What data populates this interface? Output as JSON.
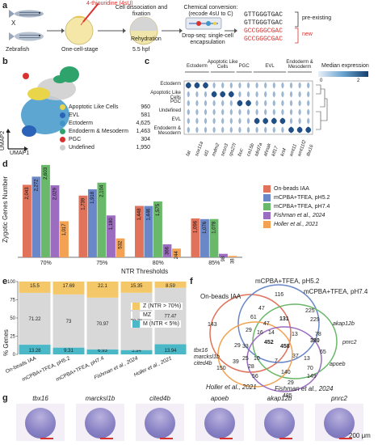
{
  "panel_labels": [
    "a",
    "b",
    "c",
    "d",
    "e",
    "f",
    "g"
  ],
  "panel_a": {
    "reagent": "4-thiouridine (4sU)",
    "zebrafish": "Zebrafish",
    "cross": "X",
    "stage1": "One-cell-stage",
    "stage2": "5.5 hpf",
    "step1": "Cell dissociation and fixation",
    "step2": "Rehydration",
    "step3": "Drop-seq: single-cell encapsulation",
    "step4": "Chemical conversion: (recode 4sU to C)",
    "seq_old_1": "GTTGGGTGAC",
    "seq_old_2": "GTTGGGTGAC",
    "seq_new_1": "GCCGGGCGAC",
    "seq_new_2": "GCCGGGCGAC",
    "pre_existing": "pre-existing",
    "new": "new"
  },
  "panel_b": {
    "xlabel": "UMAP1",
    "ylabel": "UMAP2",
    "legend": [
      {
        "name": "Apoptotic Like Cells",
        "count": "960",
        "color": "#e8d54a"
      },
      {
        "name": "EVL",
        "count": "581",
        "color": "#2a63b8"
      },
      {
        "name": "Ectoderm",
        "count": "4,625",
        "color": "#3f96c9"
      },
      {
        "name": "Endoderm & Mesoderm",
        "count": "1,463",
        "color": "#2ea36b"
      },
      {
        "name": "PGC",
        "count": "304",
        "color": "#d8322f"
      },
      {
        "name": "Undefined",
        "count": "1,950",
        "color": "#cfcfcf"
      }
    ]
  },
  "panel_c": {
    "groups": [
      "Ectoderm",
      "Apoptotic Like Cells",
      "PGC",
      "EVL",
      "Endoderm & Mesoderm"
    ],
    "rows": [
      "Ectoderm",
      "Apoptotic Like Cells",
      "PGC",
      "Undefined",
      "EVL",
      "Endoderm & Mesoderm"
    ],
    "genes": [
      "fat",
      "sox11a",
      "id1",
      "mdm2",
      "sesn3",
      "rps27l",
      "buc",
      "ca15b",
      "tdrd7a",
      "ahnak",
      "klf17",
      "krt4",
      "wnt11",
      "wnt11f2",
      "tbx16"
    ],
    "colorbar_label": "Median expression",
    "colorbar_ticks": [
      "0",
      "2"
    ]
  },
  "panel_d": {
    "chart_data": {
      "type": "bar",
      "title": "",
      "xlabel": "NTR Thresholds",
      "ylabel": "Zygotic Genes Number",
      "categories": [
        "70%",
        "75%",
        "80%",
        "85%"
      ],
      "ylim": [
        0,
        2600
      ],
      "series": [
        {
          "name": "On-beads IAA",
          "color": "#e0735a",
          "values": [
            2043,
            1739,
            1448,
            1096
          ]
        },
        {
          "name": "mCPBA+TFEA, pH5.2",
          "color": "#6a87c8",
          "values": [
            2272,
            1918,
            1446,
            1076
          ]
        },
        {
          "name": "mCPBA+TFEA, pH7.4",
          "color": "#6ab86a",
          "values": [
            2603,
            2104,
            1575,
            1078
          ]
        },
        {
          "name": "Fishman et al., 2024",
          "color": "#9b6cc0",
          "values": [
            2029,
            1180,
            366,
            98
          ]
        },
        {
          "name": "Holler et al., 2021",
          "color": "#f2a252",
          "values": [
            1017,
            532,
            244,
            38
          ]
        }
      ],
      "data_labels": {
        "values": [
          [
            "2,043",
            "2,272",
            "2,603",
            "2,029",
            "1,017"
          ],
          [
            "1,739",
            "1,918",
            "2,104",
            "1,180",
            "532"
          ],
          [
            "1,448",
            "1,446",
            "1,575",
            "366",
            "244"
          ],
          [
            "1,096",
            "1,076",
            "1,078",
            "98",
            "38"
          ]
        ]
      }
    }
  },
  "panel_e": {
    "chart_data": {
      "type": "bar",
      "title": "",
      "xlabel": "",
      "ylabel": "% Genes",
      "ylim": [
        0,
        100
      ],
      "categories": [
        "On-beads IAA",
        "mCPBA+TFEA, pH5.2",
        "mCPBA+TFEA, pH7.4",
        "Fishman et al., 2024",
        "Holler et al., 2021"
      ],
      "series": [
        {
          "name": "M (NTR < 5%)",
          "color": "#4bb8c8",
          "values": [
            13.28,
            9.31,
            6.93,
            5.94,
            13.94
          ]
        },
        {
          "name": "MZ",
          "color": "#d8d8d8",
          "values": [
            71.22,
            73,
            70.97,
            78.71,
            77.47
          ]
        },
        {
          "name": "Z (NTR > 70%)",
          "color": "#f4c869",
          "values": [
            15.5,
            17.69,
            22.1,
            15.35,
            8.59
          ]
        }
      ],
      "yticks": [
        "0",
        "25",
        "50",
        "75",
        "100"
      ],
      "data_labels": {
        "Z": [
          "15.5",
          "17.69",
          "22.1",
          "15.35",
          "8.59"
        ],
        "MZ": [
          "71.22",
          "73",
          "70.97",
          "78.71",
          "77.47"
        ],
        "M": [
          "13.28",
          "9.31",
          "6.93",
          "5.94",
          "13.94"
        ]
      }
    },
    "legend": [
      {
        "name": "Z (NTR > 70%)",
        "color": "#f4c869"
      },
      {
        "name": "MZ",
        "color": "#d8d8d8"
      },
      {
        "name": "M (NTR < 5%)",
        "color": "#4bb8c8"
      }
    ]
  },
  "panel_f": {
    "sets": [
      {
        "name": "On-beads IAA",
        "color": "#e0735a"
      },
      {
        "name": "mCPBA+TFEA, pH5.2",
        "color": "#6a87c8"
      },
      {
        "name": "mCPBA+TFEA, pH7.4",
        "color": "#6ab86a"
      },
      {
        "name": "Holler et al., 2021",
        "color": "#f2a252"
      },
      {
        "name": "Fishman et al., 2024",
        "color": "#9b6cc0"
      }
    ],
    "numbers": [
      "116",
      "143",
      "47",
      "225",
      "229",
      "131",
      "61",
      "47",
      "29",
      "33",
      "380",
      "380",
      "29",
      "452",
      "458",
      "150",
      "39",
      "28",
      "70",
      "56",
      "140",
      "29",
      "149",
      "485",
      "78",
      "65",
      "16",
      "14",
      "13",
      "7",
      "37",
      "10",
      "13",
      "25"
    ],
    "gene_notes": [
      "akap12b",
      "pnrc2",
      "apoeb",
      "tbx16",
      "marcksl1b",
      "cited4b"
    ]
  },
  "panel_g": {
    "genes": [
      "tbx16",
      "marcksl1b",
      "cited4b",
      "apoeb",
      "akap12b",
      "pnrc2"
    ],
    "scale": "200 μm"
  }
}
